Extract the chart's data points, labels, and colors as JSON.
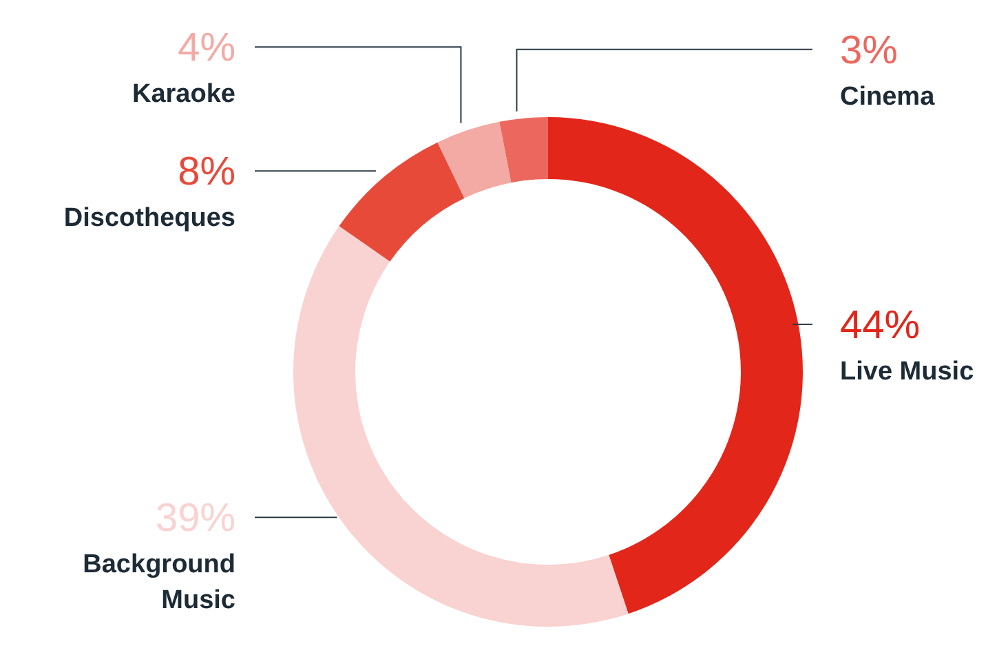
{
  "chart_data": {
    "type": "donut",
    "categories": [
      "Live Music",
      "Background Music",
      "Discotheques",
      "Karaoke",
      "Cinema"
    ],
    "values": [
      44,
      39,
      8,
      4,
      3
    ],
    "colors": [
      "#e3261a",
      "#f9d3d1",
      "#e84a3a",
      "#f4aaa4",
      "#ec685e"
    ],
    "value_labels": [
      "44%",
      "39%",
      "8%",
      "4%",
      "3%"
    ],
    "legend": false
  }
}
